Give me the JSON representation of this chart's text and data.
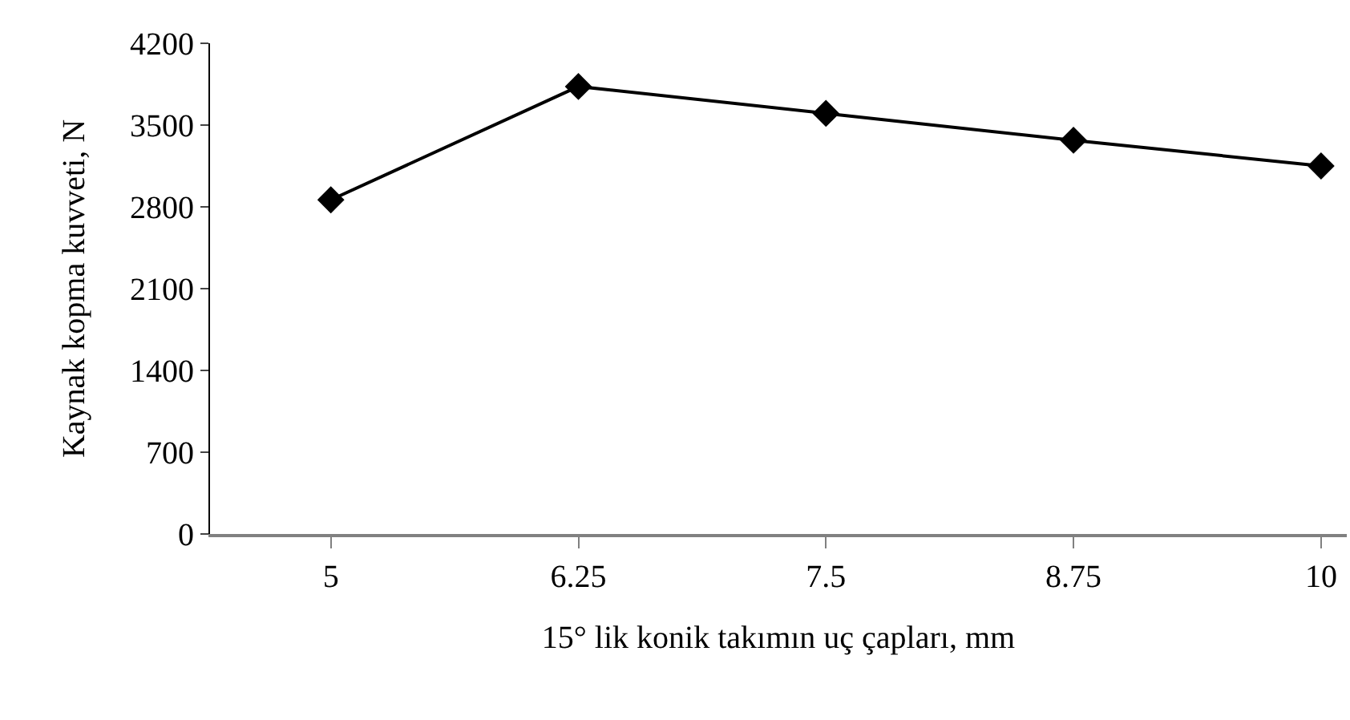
{
  "chart_data": {
    "type": "line",
    "xlabel": "15° lik konik takımın uç çapları, mm",
    "ylabel": "Kaynak kopma kuvveti, N",
    "x": [
      5,
      6.25,
      7.5,
      8.75,
      10
    ],
    "series": [
      {
        "color": "#000000",
        "values": [
          2860,
          3830,
          3600,
          3370,
          3150
        ]
      }
    ],
    "xlim": [
      4.39,
      10.13
    ],
    "xticks": [
      5,
      6.25,
      7.5,
      8.75,
      10
    ],
    "ylim": [
      0,
      4200
    ],
    "yticks": [
      0,
      700,
      1400,
      2100,
      2800,
      3500,
      4200
    ],
    "grid": false,
    "marker": "diamond",
    "line_style": "solid"
  }
}
